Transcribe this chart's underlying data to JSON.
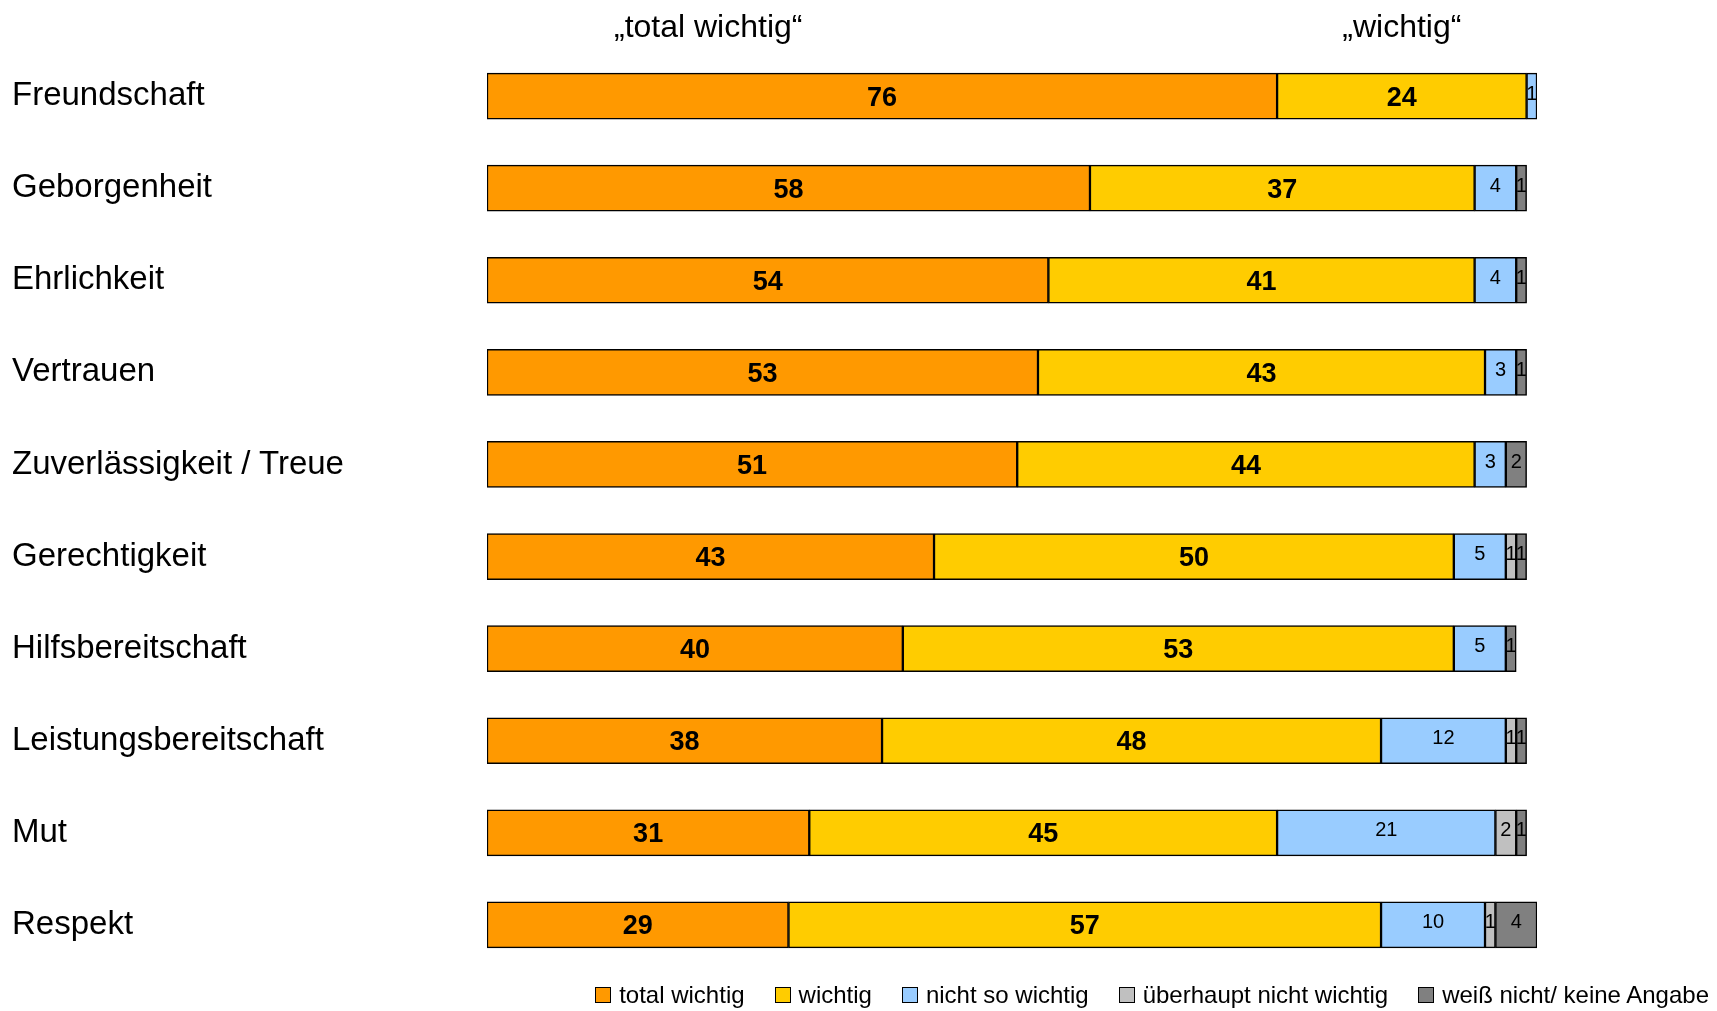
{
  "chart_data": {
    "type": "bar",
    "orientation": "horizontal",
    "stacked": true,
    "data_labels": true,
    "legend": "bottom right",
    "annotations": [
      "„total wichtig“",
      "„wichtig“"
    ],
    "categories": [
      "Freundschaft",
      "Geborgenheit",
      "Ehrlichkeit",
      "Vertrauen",
      "Zuverlässigkeit / Treue",
      "Gerechtigkeit",
      "Hilfsbereitschaft",
      "Leistungsbereitschaft",
      "Mut",
      "Respekt"
    ],
    "series": [
      {
        "name": "total wichtig",
        "color": "#ff9900",
        "values": [
          76,
          58,
          54,
          53,
          51,
          43,
          40,
          38,
          31,
          29
        ]
      },
      {
        "name": "wichtig",
        "color": "#ffcc00",
        "values": [
          24,
          37,
          41,
          43,
          44,
          50,
          53,
          48,
          45,
          57
        ]
      },
      {
        "name": "nicht so wichtig",
        "color": "#99ccff",
        "values": [
          1,
          4,
          4,
          3,
          3,
          5,
          5,
          12,
          21,
          10
        ]
      },
      {
        "name": "überhaupt nicht wichtig",
        "color": "#c0c0c0",
        "values": [
          null,
          null,
          null,
          null,
          null,
          1,
          null,
          1,
          2,
          1
        ]
      },
      {
        "name": "weiß nicht/ keine Angabe",
        "color": "#808080",
        "values": [
          null,
          1,
          1,
          1,
          2,
          1,
          1,
          1,
          1,
          4
        ]
      }
    ]
  }
}
